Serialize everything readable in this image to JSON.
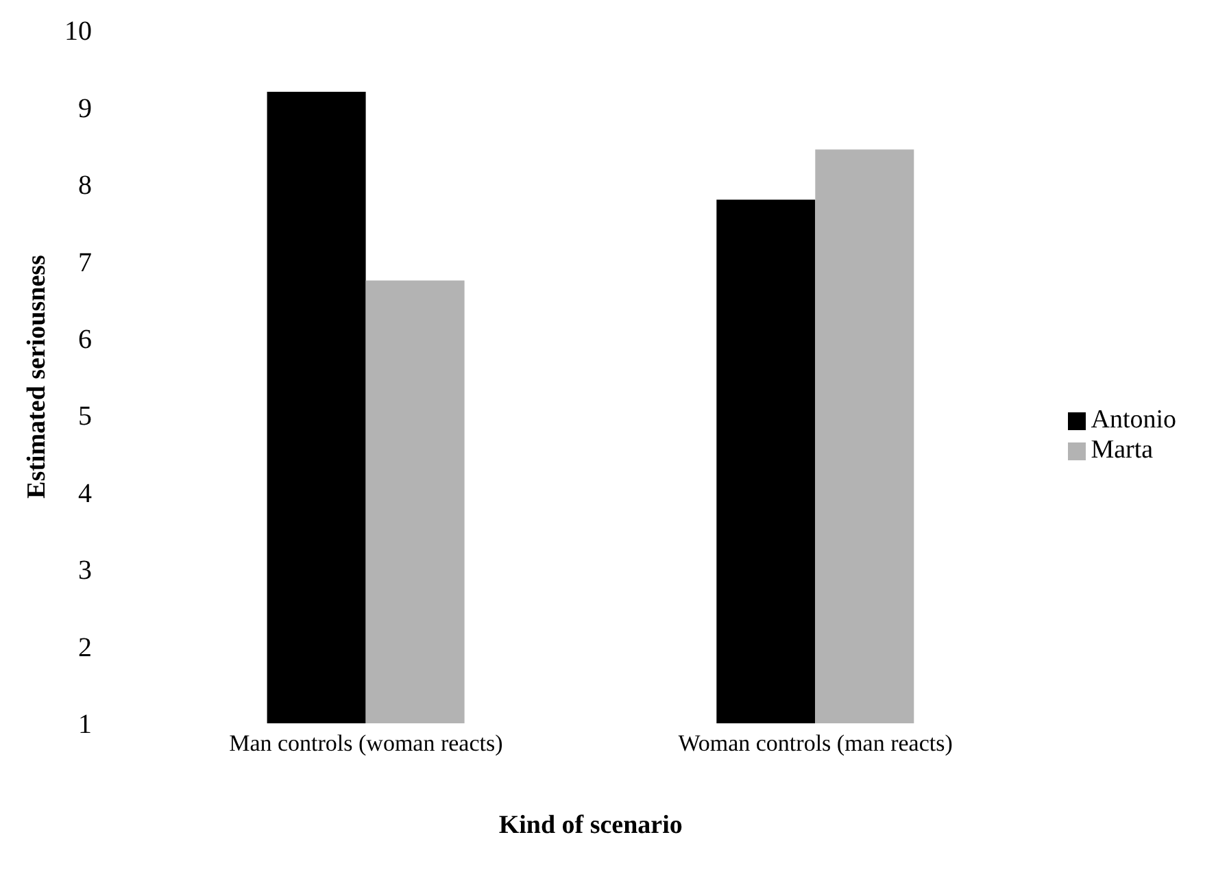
{
  "chart_data": {
    "type": "bar",
    "xlabel": "Kind of scenario",
    "ylabel": "Estimated seriousness",
    "categories": [
      "Man controls (woman reacts)",
      "Woman controls (man reacts)"
    ],
    "series": [
      {
        "name": "Antonio",
        "color": "#000000",
        "values": [
          9.2,
          7.8
        ]
      },
      {
        "name": "Marta",
        "color": "#b3b3b3",
        "values": [
          6.75,
          8.45
        ]
      }
    ],
    "ylim": [
      1,
      10
    ],
    "yticks": [
      1,
      2,
      3,
      4,
      5,
      6,
      7,
      8,
      9,
      10
    ],
    "legend": "right"
  }
}
